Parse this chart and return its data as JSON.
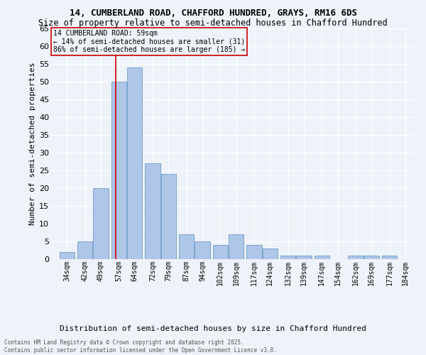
{
  "title1": "14, CUMBERLAND ROAD, CHAFFORD HUNDRED, GRAYS, RM16 6DS",
  "title2": "Size of property relative to semi-detached houses in Chafford Hundred",
  "xlabel": "Distribution of semi-detached houses by size in Chafford Hundred",
  "ylabel": "Number of semi-detached properties",
  "footer1": "Contains HM Land Registry data © Crown copyright and database right 2025.",
  "footer2": "Contains public sector information licensed under the Open Government Licence v3.0.",
  "annotation_title": "14 CUMBERLAND ROAD: 59sqm",
  "annotation_line2": "← 14% of semi-detached houses are smaller (31)",
  "annotation_line3": "86% of semi-detached houses are larger (185) →",
  "property_size": 59,
  "bar_left_edges": [
    34,
    42,
    49,
    57,
    64,
    72,
    79,
    87,
    94,
    102,
    109,
    117,
    124,
    132,
    139,
    147,
    154,
    162,
    169,
    177
  ],
  "bar_widths": [
    7,
    7,
    7,
    7,
    7,
    7,
    7,
    7,
    7,
    7,
    7,
    7,
    7,
    7,
    7,
    7,
    7,
    7,
    7,
    7
  ],
  "bar_heights": [
    2,
    5,
    20,
    50,
    54,
    27,
    24,
    7,
    5,
    4,
    7,
    4,
    3,
    1,
    1,
    1,
    0,
    1,
    1,
    1
  ],
  "bar_color": "#aec6e8",
  "bar_edge_color": "#5a8fc0",
  "vline_x": 59,
  "vline_color": "#cc0000",
  "annotation_box_color": "#cc0000",
  "ylim": [
    0,
    65
  ],
  "yticks": [
    0,
    5,
    10,
    15,
    20,
    25,
    30,
    35,
    40,
    45,
    50,
    55,
    60,
    65
  ],
  "bg_color": "#eef2f9",
  "grid_color": "#ffffff",
  "tick_labels": [
    "34sqm",
    "42sqm",
    "49sqm",
    "57sqm",
    "64sqm",
    "72sqm",
    "79sqm",
    "87sqm",
    "94sqm",
    "102sqm",
    "109sqm",
    "117sqm",
    "124sqm",
    "132sqm",
    "139sqm",
    "147sqm",
    "154sqm",
    "162sqm",
    "169sqm",
    "177sqm",
    "184sqm"
  ],
  "title_fontsize": 9,
  "subtitle_fontsize": 8.5,
  "ylabel_fontsize": 8,
  "xlabel_fontsize": 8,
  "ytick_fontsize": 8,
  "xtick_fontsize": 7
}
